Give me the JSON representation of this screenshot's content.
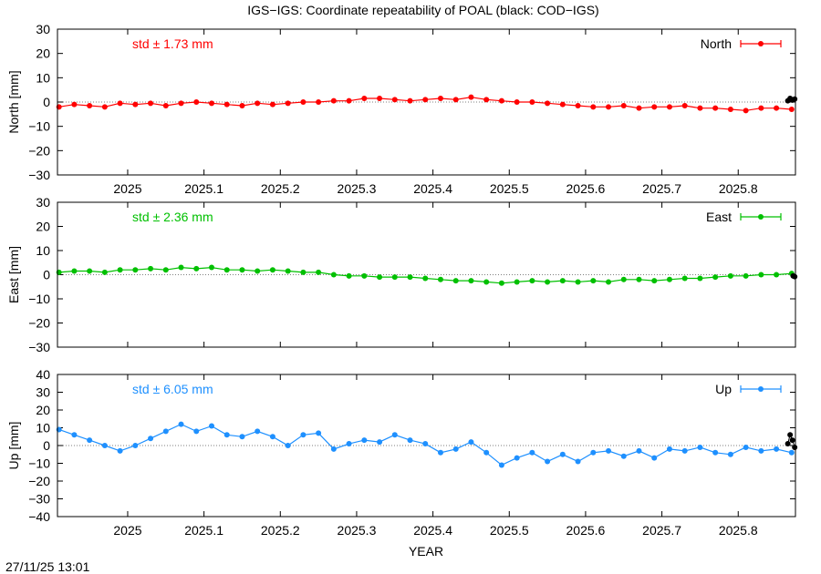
{
  "title": "IGS−IGS: Coordinate repeatability of POAL (black: COD−IGS)",
  "timestamp": "27/11/25 13:01",
  "xlabel": "YEAR",
  "colors": {
    "north": "#ff0000",
    "east": "#00c000",
    "up": "#1e90ff",
    "black": "#000000"
  },
  "chart_data": [
    {
      "type": "line",
      "name": "north",
      "ylabel": "North [mm]",
      "legend": "North",
      "std_label": "std ± 1.73 mm",
      "ylim": [
        -30,
        30
      ],
      "yticks": [
        30,
        20,
        10,
        0,
        -10,
        -20,
        -30
      ],
      "xlim": [
        2024.908,
        2025.875
      ],
      "xticks": [
        2025,
        2025.1,
        2025.2,
        2025.3,
        2025.4,
        2025.5,
        2025.6,
        2025.7,
        2025.8
      ],
      "xtick_labels": [
        "2025",
        "2025.1",
        "2025.2",
        "2025.3",
        "2025.4",
        "2025.5",
        "2025.6",
        "2025.7",
        "2025.8"
      ],
      "series_points": [
        [
          2024.91,
          -2
        ],
        [
          2024.93,
          -1
        ],
        [
          2024.95,
          -1.5
        ],
        [
          2024.97,
          -2
        ],
        [
          2024.99,
          -0.5
        ],
        [
          2025.01,
          -1
        ],
        [
          2025.03,
          -0.5
        ],
        [
          2025.05,
          -1.5
        ],
        [
          2025.07,
          -0.5
        ],
        [
          2025.09,
          0
        ],
        [
          2025.11,
          -0.5
        ],
        [
          2025.13,
          -1
        ],
        [
          2025.15,
          -1.5
        ],
        [
          2025.17,
          -0.5
        ],
        [
          2025.19,
          -1
        ],
        [
          2025.21,
          -0.5
        ],
        [
          2025.23,
          0
        ],
        [
          2025.25,
          0
        ],
        [
          2025.27,
          0.5
        ],
        [
          2025.29,
          0.5
        ],
        [
          2025.31,
          1.5
        ],
        [
          2025.33,
          1.5
        ],
        [
          2025.35,
          1
        ],
        [
          2025.37,
          0.5
        ],
        [
          2025.39,
          1
        ],
        [
          2025.41,
          1.5
        ],
        [
          2025.43,
          1
        ],
        [
          2025.45,
          2
        ],
        [
          2025.47,
          1
        ],
        [
          2025.49,
          0.5
        ],
        [
          2025.51,
          0
        ],
        [
          2025.53,
          0
        ],
        [
          2025.55,
          -0.5
        ],
        [
          2025.57,
          -1
        ],
        [
          2025.59,
          -1.5
        ],
        [
          2025.61,
          -2
        ],
        [
          2025.63,
          -2
        ],
        [
          2025.65,
          -1.5
        ],
        [
          2025.67,
          -2.5
        ],
        [
          2025.69,
          -2
        ],
        [
          2025.71,
          -2
        ],
        [
          2025.73,
          -1.5
        ],
        [
          2025.75,
          -2.5
        ],
        [
          2025.77,
          -2.5
        ],
        [
          2025.79,
          -3
        ],
        [
          2025.81,
          -3.5
        ],
        [
          2025.83,
          -2.5
        ],
        [
          2025.85,
          -2.5
        ],
        [
          2025.87,
          -3
        ]
      ],
      "black_points": [
        [
          2025.865,
          0.5
        ],
        [
          2025.868,
          1.5
        ],
        [
          2025.871,
          0.8
        ],
        [
          2025.874,
          1.2
        ]
      ]
    },
    {
      "type": "line",
      "name": "east",
      "ylabel": "East [mm]",
      "legend": "East",
      "std_label": "std ± 2.36 mm",
      "ylim": [
        -30,
        30
      ],
      "yticks": [
        30,
        20,
        10,
        0,
        -10,
        -20,
        -30
      ],
      "xlim": [
        2024.908,
        2025.875
      ],
      "xticks": [
        2025,
        2025.1,
        2025.2,
        2025.3,
        2025.4,
        2025.5,
        2025.6,
        2025.7,
        2025.8
      ],
      "xtick_labels": [
        "",
        "",
        "",
        "",
        "",
        "",
        "",
        "",
        ""
      ],
      "series_points": [
        [
          2024.91,
          1
        ],
        [
          2024.93,
          1.5
        ],
        [
          2024.95,
          1.5
        ],
        [
          2024.97,
          1
        ],
        [
          2024.99,
          2
        ],
        [
          2025.01,
          2
        ],
        [
          2025.03,
          2.5
        ],
        [
          2025.05,
          2
        ],
        [
          2025.07,
          3
        ],
        [
          2025.09,
          2.5
        ],
        [
          2025.11,
          3
        ],
        [
          2025.13,
          2
        ],
        [
          2025.15,
          2
        ],
        [
          2025.17,
          1.5
        ],
        [
          2025.19,
          2
        ],
        [
          2025.21,
          1.5
        ],
        [
          2025.23,
          1
        ],
        [
          2025.25,
          1
        ],
        [
          2025.27,
          0
        ],
        [
          2025.29,
          -0.5
        ],
        [
          2025.31,
          -0.5
        ],
        [
          2025.33,
          -1
        ],
        [
          2025.35,
          -1
        ],
        [
          2025.37,
          -1
        ],
        [
          2025.39,
          -1.5
        ],
        [
          2025.41,
          -2
        ],
        [
          2025.43,
          -2.5
        ],
        [
          2025.45,
          -2.5
        ],
        [
          2025.47,
          -3
        ],
        [
          2025.49,
          -3.5
        ],
        [
          2025.51,
          -3
        ],
        [
          2025.53,
          -2.5
        ],
        [
          2025.55,
          -3
        ],
        [
          2025.57,
          -2.5
        ],
        [
          2025.59,
          -3
        ],
        [
          2025.61,
          -2.5
        ],
        [
          2025.63,
          -3
        ],
        [
          2025.65,
          -2
        ],
        [
          2025.67,
          -2
        ],
        [
          2025.69,
          -2.5
        ],
        [
          2025.71,
          -2
        ],
        [
          2025.73,
          -1.5
        ],
        [
          2025.75,
          -1.5
        ],
        [
          2025.77,
          -1
        ],
        [
          2025.79,
          -0.5
        ],
        [
          2025.81,
          -0.5
        ],
        [
          2025.83,
          0
        ],
        [
          2025.85,
          0
        ],
        [
          2025.87,
          0.5
        ]
      ],
      "black_points": [
        [
          2025.872,
          -0.5
        ],
        [
          2025.874,
          -0.8
        ]
      ]
    },
    {
      "type": "line",
      "name": "up",
      "ylabel": "Up [mm]",
      "legend": "Up",
      "std_label": "std ± 6.05 mm",
      "ylim": [
        -40,
        40
      ],
      "yticks": [
        40,
        30,
        20,
        10,
        0,
        -10,
        -20,
        -30,
        -40
      ],
      "xlim": [
        2024.908,
        2025.875
      ],
      "xticks": [
        2025,
        2025.1,
        2025.2,
        2025.3,
        2025.4,
        2025.5,
        2025.6,
        2025.7,
        2025.8
      ],
      "xtick_labels": [
        "2025",
        "2025.1",
        "2025.2",
        "2025.3",
        "2025.4",
        "2025.5",
        "2025.6",
        "2025.7",
        "2025.8"
      ],
      "series_points": [
        [
          2024.91,
          9
        ],
        [
          2024.93,
          6
        ],
        [
          2024.95,
          3
        ],
        [
          2024.97,
          0
        ],
        [
          2024.99,
          -3
        ],
        [
          2025.01,
          0
        ],
        [
          2025.03,
          4
        ],
        [
          2025.05,
          8
        ],
        [
          2025.07,
          12
        ],
        [
          2025.09,
          8
        ],
        [
          2025.11,
          11
        ],
        [
          2025.13,
          6
        ],
        [
          2025.15,
          5
        ],
        [
          2025.17,
          8
        ],
        [
          2025.19,
          5
        ],
        [
          2025.21,
          0
        ],
        [
          2025.23,
          6
        ],
        [
          2025.25,
          7
        ],
        [
          2025.27,
          -2
        ],
        [
          2025.29,
          1
        ],
        [
          2025.31,
          3
        ],
        [
          2025.33,
          2
        ],
        [
          2025.35,
          6
        ],
        [
          2025.37,
          3
        ],
        [
          2025.39,
          1
        ],
        [
          2025.41,
          -4
        ],
        [
          2025.43,
          -2
        ],
        [
          2025.45,
          2
        ],
        [
          2025.47,
          -4
        ],
        [
          2025.49,
          -11
        ],
        [
          2025.51,
          -7
        ],
        [
          2025.53,
          -4
        ],
        [
          2025.55,
          -9
        ],
        [
          2025.57,
          -5
        ],
        [
          2025.59,
          -9
        ],
        [
          2025.61,
          -4
        ],
        [
          2025.63,
          -3
        ],
        [
          2025.65,
          -6
        ],
        [
          2025.67,
          -3
        ],
        [
          2025.69,
          -7
        ],
        [
          2025.71,
          -2
        ],
        [
          2025.73,
          -3
        ],
        [
          2025.75,
          -1
        ],
        [
          2025.77,
          -4
        ],
        [
          2025.79,
          -5
        ],
        [
          2025.81,
          -1
        ],
        [
          2025.83,
          -3
        ],
        [
          2025.85,
          -2
        ],
        [
          2025.87,
          -4
        ]
      ],
      "black_points": [
        [
          2025.865,
          1
        ],
        [
          2025.868,
          6
        ],
        [
          2025.871,
          3
        ],
        [
          2025.874,
          -1
        ]
      ]
    }
  ]
}
